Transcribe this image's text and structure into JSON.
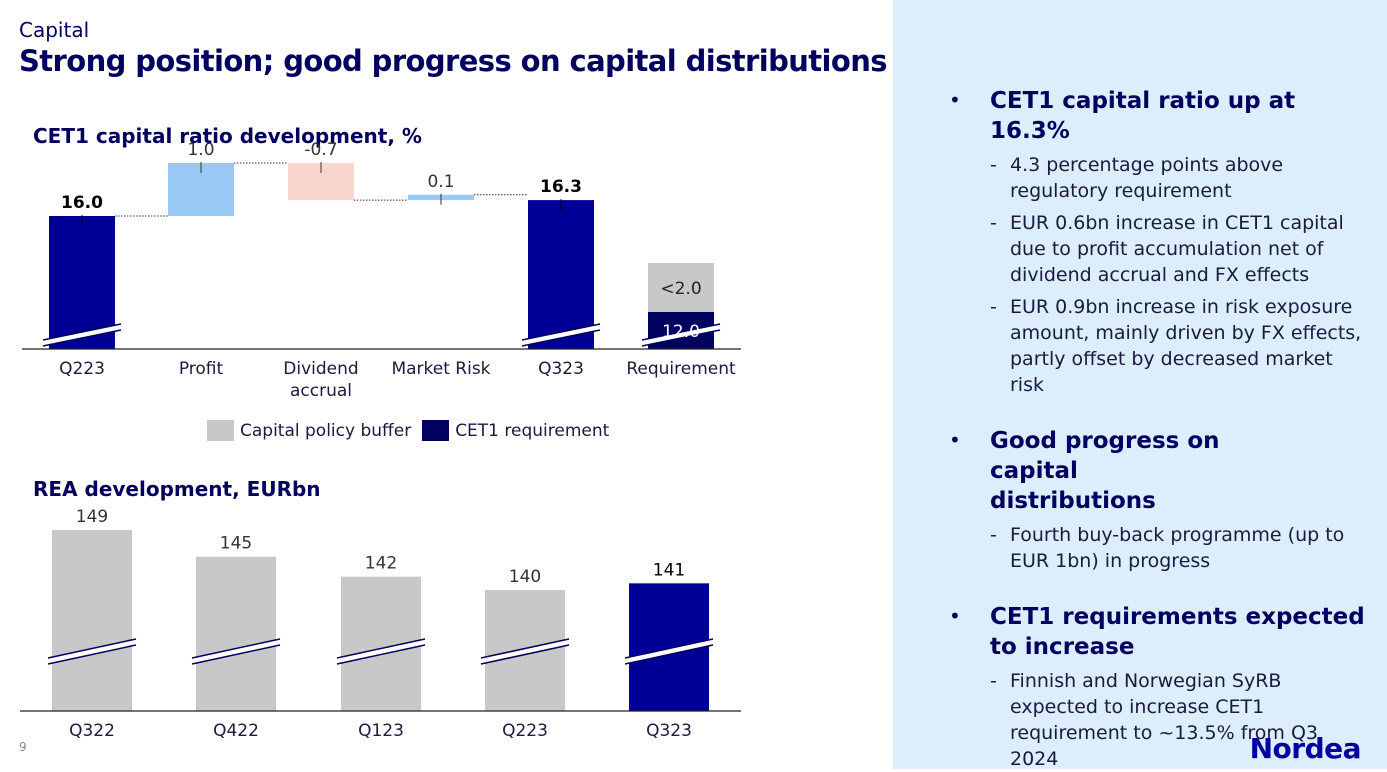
{
  "header": {
    "section": "Capital",
    "headline": "Strong position; good progress on capital distributions",
    "page_number": "9"
  },
  "colors": {
    "navy": "#000096",
    "dark_navy": "#00005e",
    "light_blue": "#99c9f7",
    "salmon": "#f9d6cb",
    "grey": "#c8c8c8",
    "panel": "#dcedfb"
  },
  "chart_data": [
    {
      "type": "bar",
      "subtype": "waterfall",
      "title": "CET1 capital ratio development, %",
      "categories": [
        "Q223",
        "Profit",
        "Dividend accrual",
        "Market Risk",
        "Q323",
        "Requirement"
      ],
      "values": [
        16.0,
        1.0,
        -0.7,
        0.1,
        16.3,
        null
      ],
      "labels": [
        "16.0",
        "1.0",
        "-0.7",
        "0.1",
        "16.3",
        ""
      ],
      "requirement": {
        "series": [
          {
            "name": "CET1 requirement",
            "value": 12.0,
            "label": "12.0"
          },
          {
            "name": "Capital policy buffer",
            "value": 2.0,
            "label": "<2.0"
          }
        ]
      },
      "legend": [
        "Capital policy buffer",
        "CET1 requirement"
      ],
      "axis_break": true,
      "grid": false,
      "legend_position": "bottom"
    },
    {
      "type": "bar",
      "title": "REA development, EURbn",
      "categories": [
        "Q322",
        "Q422",
        "Q123",
        "Q223",
        "Q323"
      ],
      "values": [
        149,
        145,
        142,
        140,
        141
      ],
      "highlight": "Q323",
      "axis_break": true,
      "grid": false
    }
  ],
  "bullets": [
    {
      "title": "CET1 capital ratio up at 16.3%",
      "subs": [
        "4.3 percentage points above regulatory requirement",
        "EUR 0.6bn increase in CET1 capital due to profit accumulation net of dividend accrual and FX effects",
        "EUR 0.9bn increase in risk exposure amount, mainly driven by FX effects, partly offset by decreased market risk"
      ]
    },
    {
      "title": "Good progress on capital distributions",
      "subs": [
        "Fourth buy-back programme (up to EUR 1bn) in progress"
      ]
    },
    {
      "title": "CET1 requirements expected to increase",
      "subs": [
        "Finnish and Norwegian SyRB expected to increase CET1 requirement to ~13.5% from Q3 2024"
      ]
    }
  ],
  "logo": "Nordea"
}
